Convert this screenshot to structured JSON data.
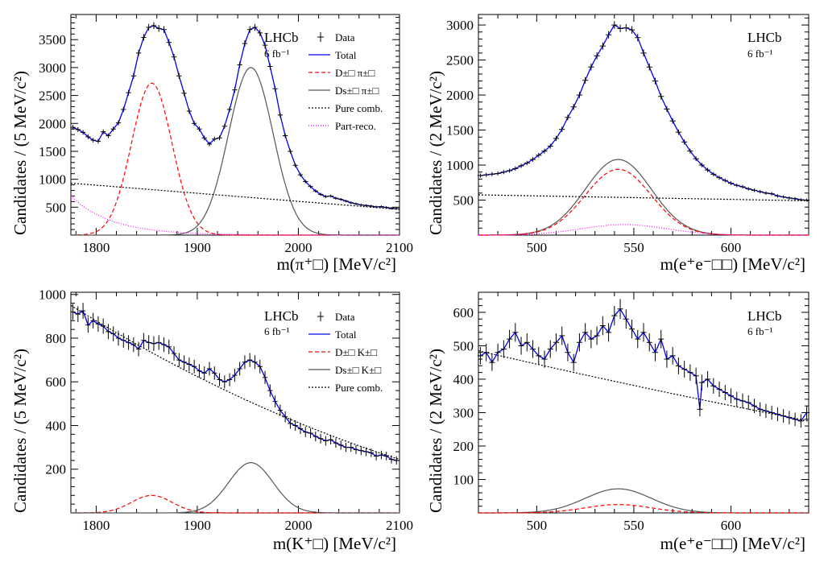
{
  "chart_data": [
    {
      "type": "line",
      "panel": "top-left",
      "xlabel": "m(π⁺□) [MeV/c²]",
      "ylabel": "Candidates / (5 MeV/c²)",
      "xlim": [
        1775,
        2100
      ],
      "ylim": [
        0,
        3950
      ],
      "xticks": [
        1800,
        1900,
        2000,
        2100
      ],
      "yticks": [
        500,
        1000,
        1500,
        2000,
        2500,
        3000,
        3500
      ],
      "experiment": "LHCb",
      "luminosity": "6 fb⁻¹",
      "legend": [
        "Data",
        "Total",
        "D±□ π±□",
        "Ds±□ π±□",
        "Pure comb.",
        "Part-reco."
      ],
      "series": [
        {
          "name": "D±□ π±□",
          "kind": "gauss",
          "amp": 2720,
          "mean": 1855,
          "sigma": 20,
          "color": "#ff0000",
          "dash": "5,3"
        },
        {
          "name": "Ds±□ π±□",
          "kind": "gauss",
          "amp": 3000,
          "mean": 1953,
          "sigma": 22,
          "color": "#555555",
          "dash": ""
        },
        {
          "name": "Pure comb.",
          "kind": "linear",
          "a": 930,
          "b": 460,
          "color": "#000000",
          "dash": "2,2"
        },
        {
          "name": "Part-reco.",
          "kind": "exp",
          "amp": 700,
          "tau": 40,
          "color": "#ff00ff",
          "dash": "1,2"
        }
      ],
      "data_points": [
        [
          1777,
          1930
        ],
        [
          1782,
          1890
        ],
        [
          1787,
          1840
        ],
        [
          1792,
          1760
        ],
        [
          1797,
          1700
        ],
        [
          1802,
          1680
        ],
        [
          1807,
          1850
        ],
        [
          1812,
          1780
        ],
        [
          1817,
          1900
        ],
        [
          1822,
          2010
        ],
        [
          1827,
          2250
        ],
        [
          1832,
          2550
        ],
        [
          1837,
          2850
        ],
        [
          1842,
          3260
        ],
        [
          1847,
          3540
        ],
        [
          1852,
          3720
        ],
        [
          1857,
          3750
        ],
        [
          1862,
          3700
        ],
        [
          1867,
          3680
        ],
        [
          1872,
          3450
        ],
        [
          1877,
          3190
        ],
        [
          1882,
          2850
        ],
        [
          1887,
          2540
        ],
        [
          1892,
          2220
        ],
        [
          1897,
          2000
        ],
        [
          1902,
          1900
        ],
        [
          1907,
          1740
        ],
        [
          1912,
          1630
        ],
        [
          1917,
          1720
        ],
        [
          1922,
          1740
        ],
        [
          1927,
          1950
        ],
        [
          1932,
          2250
        ],
        [
          1937,
          2600
        ],
        [
          1942,
          3050
        ],
        [
          1947,
          3430
        ],
        [
          1952,
          3680
        ],
        [
          1957,
          3720
        ],
        [
          1962,
          3620
        ],
        [
          1967,
          3400
        ],
        [
          1972,
          3020
        ],
        [
          1977,
          2620
        ],
        [
          1982,
          2150
        ],
        [
          1987,
          1780
        ],
        [
          1992,
          1500
        ],
        [
          1997,
          1250
        ],
        [
          2002,
          1080
        ],
        [
          2007,
          960
        ],
        [
          2012,
          870
        ],
        [
          2017,
          790
        ],
        [
          2022,
          730
        ],
        [
          2027,
          690
        ],
        [
          2032,
          700
        ],
        [
          2037,
          660
        ],
        [
          2042,
          640
        ],
        [
          2047,
          610
        ],
        [
          2052,
          580
        ],
        [
          2057,
          560
        ],
        [
          2062,
          540
        ],
        [
          2067,
          530
        ],
        [
          2072,
          520
        ],
        [
          2077,
          505
        ],
        [
          2082,
          510
        ],
        [
          2087,
          495
        ],
        [
          2092,
          480
        ],
        [
          2097,
          475
        ]
      ]
    },
    {
      "type": "line",
      "panel": "top-right",
      "xlabel": "m(e⁺e⁻□□) [MeV/c²]",
      "ylabel": "Candidates / (2 MeV/c²)",
      "xlim": [
        470,
        640
      ],
      "ylim": [
        0,
        3150
      ],
      "xticks": [
        500,
        550,
        600
      ],
      "yticks": [
        500,
        1000,
        1500,
        2000,
        2500,
        3000
      ],
      "experiment": "LHCb",
      "luminosity": "6 fb⁻¹",
      "legend": [],
      "series": [
        {
          "name": "Ds±□ π±□",
          "kind": "gauss",
          "amp": 1080,
          "mean": 542,
          "sigma": 17,
          "color": "#555555",
          "dash": ""
        },
        {
          "name": "D±□ π±□",
          "kind": "gauss",
          "amp": 940,
          "mean": 542,
          "sigma": 17,
          "color": "#ff0000",
          "dash": "5,3"
        },
        {
          "name": "Pure comb.",
          "kind": "linear",
          "a": 575,
          "b": 490,
          "color": "#000000",
          "dash": "2,2"
        },
        {
          "name": "Part-reco.",
          "kind": "gauss",
          "amp": 150,
          "mean": 545,
          "sigma": 22,
          "color": "#ff00ff",
          "dash": "1,2"
        }
      ],
      "data_points": [
        [
          471,
          850
        ],
        [
          474,
          860
        ],
        [
          477,
          870
        ],
        [
          480,
          880
        ],
        [
          483,
          900
        ],
        [
          486,
          920
        ],
        [
          489,
          950
        ],
        [
          492,
          990
        ],
        [
          495,
          1030
        ],
        [
          498,
          1080
        ],
        [
          501,
          1140
        ],
        [
          504,
          1200
        ],
        [
          507,
          1270
        ],
        [
          510,
          1380
        ],
        [
          513,
          1510
        ],
        [
          516,
          1680
        ],
        [
          519,
          1830
        ],
        [
          522,
          2000
        ],
        [
          525,
          2210
        ],
        [
          528,
          2400
        ],
        [
          531,
          2560
        ],
        [
          534,
          2700
        ],
        [
          537,
          2860
        ],
        [
          540,
          3000
        ],
        [
          543,
          2950
        ],
        [
          546,
          2960
        ],
        [
          549,
          2930
        ],
        [
          552,
          2820
        ],
        [
          555,
          2600
        ],
        [
          558,
          2400
        ],
        [
          561,
          2200
        ],
        [
          564,
          1980
        ],
        [
          567,
          1800
        ],
        [
          570,
          1630
        ],
        [
          573,
          1470
        ],
        [
          576,
          1330
        ],
        [
          579,
          1200
        ],
        [
          582,
          1090
        ],
        [
          585,
          1000
        ],
        [
          588,
          930
        ],
        [
          591,
          870
        ],
        [
          594,
          820
        ],
        [
          597,
          780
        ],
        [
          600,
          740
        ],
        [
          603,
          710
        ],
        [
          606,
          690
        ],
        [
          609,
          660
        ],
        [
          612,
          640
        ],
        [
          615,
          620
        ],
        [
          618,
          600
        ],
        [
          621,
          590
        ],
        [
          624,
          560
        ],
        [
          627,
          545
        ],
        [
          630,
          530
        ],
        [
          633,
          520
        ],
        [
          636,
          505
        ],
        [
          639,
          500
        ]
      ]
    },
    {
      "type": "line",
      "panel": "bottom-left",
      "xlabel": "m(K⁺□) [MeV/c²]",
      "ylabel": "Candidates / (5 MeV/c²)",
      "xlim": [
        1775,
        2100
      ],
      "ylim": [
        0,
        1010
      ],
      "xticks": [
        1800,
        1900,
        2000,
        2100
      ],
      "yticks": [
        200,
        400,
        600,
        800,
        1000
      ],
      "experiment": "LHCb",
      "luminosity": "6 fb⁻¹",
      "legend": [
        "Data",
        "Total",
        "D±□ K±□",
        "Ds±□ K±□",
        "Pure comb."
      ],
      "series": [
        {
          "name": "D±□ K±□",
          "kind": "gauss",
          "amp": 80,
          "mean": 1855,
          "sigma": 20,
          "color": "#ff0000",
          "dash": "5,3"
        },
        {
          "name": "Ds±□ K±□",
          "kind": "gauss",
          "amp": 230,
          "mean": 1953,
          "sigma": 22,
          "color": "#555555",
          "dash": ""
        },
        {
          "name": "Pure comb.",
          "kind": "quad",
          "a": 950,
          "b": 245,
          "c": 230,
          "color": "#000000",
          "dash": "2,2"
        }
      ],
      "data_points": [
        [
          1777,
          920
        ],
        [
          1782,
          910
        ],
        [
          1787,
          925
        ],
        [
          1792,
          860
        ],
        [
          1797,
          880
        ],
        [
          1802,
          865
        ],
        [
          1807,
          855
        ],
        [
          1812,
          830
        ],
        [
          1817,
          820
        ],
        [
          1822,
          800
        ],
        [
          1827,
          790
        ],
        [
          1832,
          780
        ],
        [
          1837,
          770
        ],
        [
          1842,
          750
        ],
        [
          1847,
          790
        ],
        [
          1852,
          780
        ],
        [
          1857,
          775
        ],
        [
          1862,
          780
        ],
        [
          1867,
          770
        ],
        [
          1872,
          760
        ],
        [
          1877,
          730
        ],
        [
          1882,
          700
        ],
        [
          1887,
          690
        ],
        [
          1892,
          680
        ],
        [
          1897,
          670
        ],
        [
          1902,
          650
        ],
        [
          1907,
          640
        ],
        [
          1912,
          660
        ],
        [
          1917,
          640
        ],
        [
          1922,
          610
        ],
        [
          1927,
          600
        ],
        [
          1932,
          610
        ],
        [
          1937,
          630
        ],
        [
          1942,
          660
        ],
        [
          1947,
          690
        ],
        [
          1952,
          700
        ],
        [
          1957,
          690
        ],
        [
          1962,
          670
        ],
        [
          1967,
          620
        ],
        [
          1972,
          560
        ],
        [
          1977,
          510
        ],
        [
          1982,
          470
        ],
        [
          1987,
          440
        ],
        [
          1992,
          410
        ],
        [
          1997,
          400
        ],
        [
          2002,
          385
        ],
        [
          2007,
          370
        ],
        [
          2012,
          365
        ],
        [
          2017,
          350
        ],
        [
          2022,
          340
        ],
        [
          2027,
          330
        ],
        [
          2032,
          335
        ],
        [
          2037,
          320
        ],
        [
          2042,
          310
        ],
        [
          2047,
          300
        ],
        [
          2052,
          300
        ],
        [
          2057,
          290
        ],
        [
          2062,
          285
        ],
        [
          2067,
          280
        ],
        [
          2072,
          275
        ],
        [
          2077,
          260
        ],
        [
          2082,
          265
        ],
        [
          2087,
          260
        ],
        [
          2092,
          245
        ],
        [
          2097,
          240
        ]
      ]
    },
    {
      "type": "line",
      "panel": "bottom-right",
      "xlabel": "m(e⁺e⁻□□) [MeV/c²]",
      "ylabel": "Candidates / (2 MeV/c²)",
      "xlim": [
        470,
        640
      ],
      "ylim": [
        0,
        660
      ],
      "xticks": [
        500,
        550,
        600
      ],
      "yticks": [
        100,
        200,
        300,
        400,
        500,
        600
      ],
      "experiment": "LHCb",
      "luminosity": "6 fb⁻¹",
      "legend": [],
      "series": [
        {
          "name": "Ds±□ K±□",
          "kind": "gauss",
          "amp": 72,
          "mean": 542,
          "sigma": 17,
          "color": "#555555",
          "dash": ""
        },
        {
          "name": "D±□ K±□",
          "kind": "gauss",
          "amp": 25,
          "mean": 542,
          "sigma": 17,
          "color": "#ff0000",
          "dash": "5,3"
        },
        {
          "name": "Pure comb.",
          "kind": "quad",
          "a": 485,
          "b": 275,
          "c": 20,
          "color": "#000000",
          "dash": "2,2"
        }
      ],
      "data_points": [
        [
          471,
          470
        ],
        [
          474,
          480
        ],
        [
          477,
          450
        ],
        [
          480,
          480
        ],
        [
          483,
          490
        ],
        [
          486,
          520
        ],
        [
          489,
          540
        ],
        [
          492,
          500
        ],
        [
          495,
          510
        ],
        [
          498,
          490
        ],
        [
          501,
          470
        ],
        [
          504,
          460
        ],
        [
          507,
          490
        ],
        [
          510,
          510
        ],
        [
          513,
          530
        ],
        [
          516,
          480
        ],
        [
          519,
          450
        ],
        [
          522,
          510
        ],
        [
          525,
          540
        ],
        [
          528,
          520
        ],
        [
          531,
          530
        ],
        [
          534,
          560
        ],
        [
          537,
          540
        ],
        [
          540,
          590
        ],
        [
          543,
          610
        ],
        [
          546,
          580
        ],
        [
          549,
          550
        ],
        [
          552,
          520
        ],
        [
          555,
          540
        ],
        [
          558,
          510
        ],
        [
          561,
          480
        ],
        [
          564,
          520
        ],
        [
          567,
          460
        ],
        [
          570,
          470
        ],
        [
          573,
          440
        ],
        [
          576,
          430
        ],
        [
          579,
          420
        ],
        [
          582,
          410
        ],
        [
          585,
          390
        ],
        [
          588,
          400
        ],
        [
          591,
          380
        ],
        [
          594,
          370
        ],
        [
          597,
          360
        ],
        [
          600,
          350
        ],
        [
          603,
          340
        ],
        [
          606,
          335
        ],
        [
          609,
          330
        ],
        [
          612,
          320
        ],
        [
          615,
          310
        ],
        [
          618,
          305
        ],
        [
          621,
          300
        ],
        [
          624,
          295
        ],
        [
          627,
          290
        ],
        [
          630,
          285
        ],
        [
          633,
          280
        ],
        [
          636,
          275
        ],
        [
          639,
          300
        ],
        [
          584,
          310
        ]
      ]
    }
  ]
}
